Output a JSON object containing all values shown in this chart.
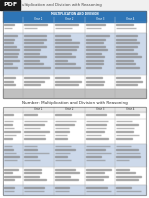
{
  "bg_color": "#ffffff",
  "pdf_badge_color": "#1a1a1a",
  "pdf_badge_text": "PDF",
  "pdf_badge_text_color": "#ffffff",
  "header_title": "ultiplication and Division with Reasoning",
  "header_title_color": "#444444",
  "table1_header_bg": "#2e75b6",
  "table1_header_text": "#ffffff",
  "table1_subheader_labels": [
    "Year 1",
    "Year 2",
    "Year 3",
    "Year 4"
  ],
  "table1_row_light": "#cdd9ea",
  "table1_row_white": "#ffffff",
  "table1_border": "#aaaaaa",
  "table1_header_text_main": "MULTIPLICATION AND DIVISION",
  "table2_title": "Number: Multiplication and Division with Reasoning",
  "table2_title_color": "#333333",
  "table2_subheader_labels": [
    "Year 1",
    "Year 2",
    "Year 3",
    "Year 4"
  ],
  "table2_row_light": "#cdd9ea",
  "table2_row_white": "#ffffff",
  "table2_border": "#aaaaaa",
  "col_widths_rel": [
    20,
    30,
    30,
    30,
    30
  ],
  "figsize": [
    1.49,
    1.98
  ],
  "dpi": 100
}
